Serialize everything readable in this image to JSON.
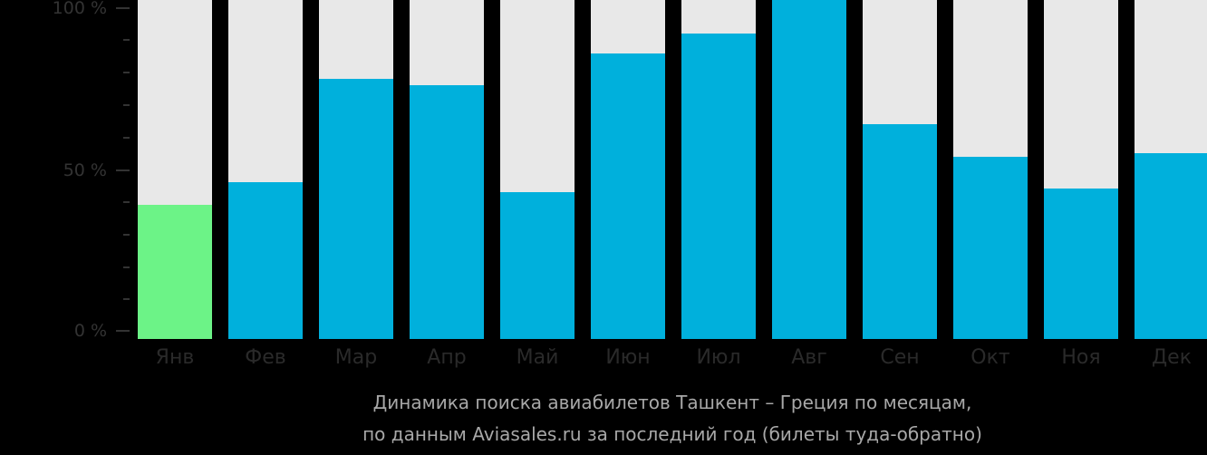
{
  "chart_data": {
    "type": "bar",
    "title": "Динамика поиска авиабилетов Ташкент – Греция по месяцам, по данным Aviasales.ru за последний год (билеты туда-обратно)",
    "xlabel": "",
    "ylabel": "",
    "ylim": [
      0,
      100
    ],
    "yticks": [
      "0 %",
      "50 %",
      "100 %"
    ],
    "grid": false,
    "legend": null,
    "categories": [
      "Янв",
      "Фев",
      "Мар",
      "Апр",
      "Май",
      "Июн",
      "Июл",
      "Авг",
      "Сен",
      "Окт",
      "Ноя",
      "Дек"
    ],
    "values": [
      39,
      46,
      78,
      76,
      43,
      86,
      92,
      100,
      64,
      54,
      44,
      55
    ],
    "highlight_index": 0,
    "colors": {
      "bar": "#00b0dc",
      "highlight": "#6cf387",
      "track": "#e8e8e8",
      "background": "#000000"
    }
  },
  "axis": {
    "y_labels": [
      "100 %",
      "50 %",
      "0 %"
    ]
  },
  "caption": {
    "line1": "Динамика поиска авиабилетов Ташкент – Греция по месяцам,",
    "line2": "по данным Aviasales.ru за последний год (билеты туда-обратно)"
  }
}
